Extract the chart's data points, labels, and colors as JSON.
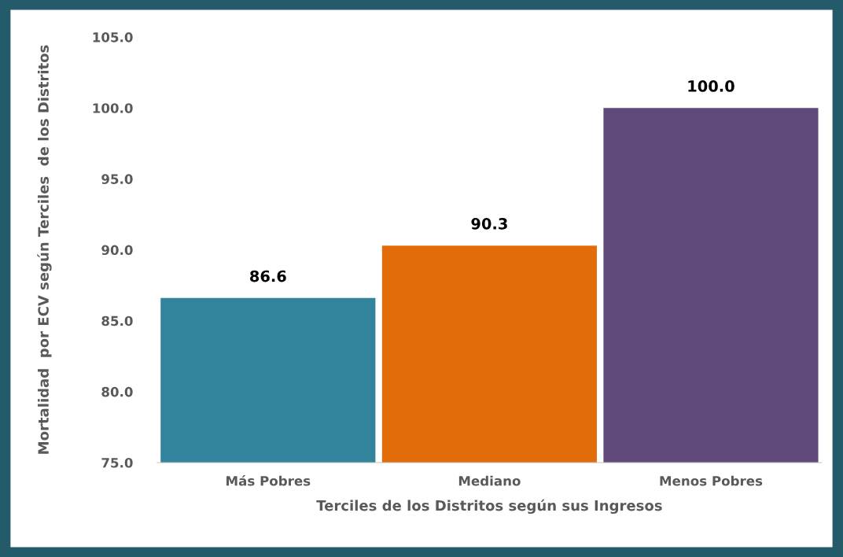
{
  "chart_data": {
    "type": "bar",
    "xlabel": "Terciles de los Distritos según sus Ingresos",
    "ylabel": "Mortalidad  por ECV según Terciles  de los Distritos",
    "categories": [
      "Más Pobres",
      "Mediano",
      "Menos Pobres"
    ],
    "values": [
      86.6,
      90.3,
      100.0
    ],
    "colors": [
      "#31849b",
      "#e36c0a",
      "#604a7b"
    ],
    "value_labels": [
      "86.6",
      "90.3",
      "100.0"
    ],
    "ylim": [
      75,
      105
    ],
    "yticks": [
      {
        "value": 75,
        "label": "75.0"
      },
      {
        "value": 80,
        "label": "80.0"
      },
      {
        "value": 85,
        "label": "85.0"
      },
      {
        "value": 90,
        "label": "90.0"
      },
      {
        "value": 95,
        "label": "95.0"
      },
      {
        "value": 100,
        "label": "100.0"
      },
      {
        "value": 105,
        "label": "105.0"
      }
    ],
    "grid": false,
    "legend": false
  }
}
